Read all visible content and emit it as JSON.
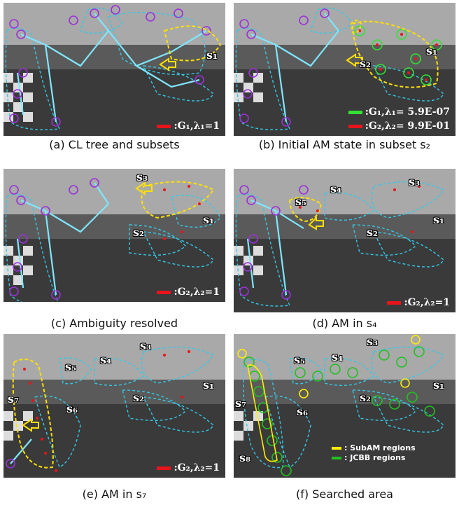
{
  "colors": {
    "tree": "#7fe7ff",
    "subset_border": "#34c8e6",
    "landmark": "#9b30d9",
    "highlight": "#ffe000",
    "g1": "#33e033",
    "g2": "#e8141c",
    "subam": "#ffee00",
    "jcbb": "#22c022"
  },
  "panels": [
    {
      "caption": "(a) CL tree and subsets",
      "labels": [
        "s1"
      ],
      "legend": [
        {
          "color": "g2",
          "text": ":G₁,λ₁=1"
        }
      ]
    },
    {
      "caption": "(b) Initial AM state in subset s₂",
      "labels": [
        "s1",
        "s2"
      ],
      "legend": [
        {
          "color": "g1",
          "text": ":G₁,λ₁= 5.9E-07"
        },
        {
          "color": "g2",
          "text": ":G₂,λ₂= 9.9E-01"
        }
      ]
    },
    {
      "caption": "(c) Ambiguity resolved",
      "labels": [
        "s3",
        "s2",
        "s1"
      ],
      "legend": [
        {
          "color": "g2",
          "text": ":G₂,λ₂=1"
        }
      ]
    },
    {
      "caption": "(d) AM in s₄",
      "labels": [
        "s5",
        "s4",
        "s3",
        "s2",
        "s1"
      ],
      "legend": [
        {
          "color": "g2",
          "text": ":G₂,λ₂=1"
        }
      ]
    },
    {
      "caption": "(e) AM in s₇",
      "labels": [
        "s5",
        "s4",
        "s3",
        "s2",
        "s1",
        "s7",
        "s6"
      ],
      "legend": [
        {
          "color": "g2",
          "text": ":G₂,λ₂=1"
        }
      ]
    },
    {
      "caption": "(f) Searched area",
      "labels": [
        "s5",
        "s4",
        "s3",
        "s2",
        "s1",
        "s7",
        "s6",
        "s8"
      ],
      "legend": [
        {
          "color": "subam",
          "text": ": SubAM regions"
        },
        {
          "color": "jcbb",
          "text": ": JCBB regions"
        }
      ]
    }
  ]
}
